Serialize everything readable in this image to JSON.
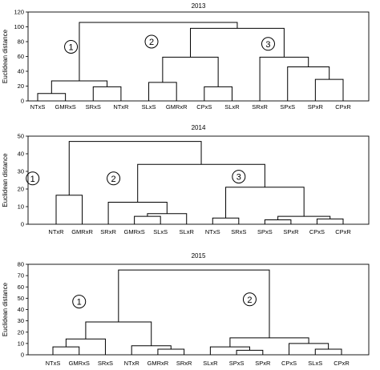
{
  "chart_data": [
    {
      "type": "dendrogram",
      "title": "2013",
      "ylabel": "Euclidean distance",
      "ylim": [
        0,
        120
      ],
      "yticks": [
        0,
        20,
        40,
        60,
        80,
        100,
        120
      ],
      "grid": false,
      "leaves": [
        "NTxS",
        "GMRxS",
        "SRxS",
        "NTxR",
        "SLxS",
        "GMRxR",
        "CPxS",
        "SLxR",
        "SRxR",
        "SPxS",
        "SPxR",
        "CPxR"
      ],
      "merges": [
        {
          "a": "NTxS",
          "b": "GMRxS",
          "height": 10
        },
        {
          "a": "SRxS",
          "b": "NTxR",
          "height": 19
        },
        {
          "a": "SLxS",
          "b": "GMRxR",
          "height": 25
        },
        {
          "a": "CPxS",
          "b": "SLxR",
          "height": 19
        },
        {
          "a": "SPxR",
          "b": "CPxR",
          "height": 29
        },
        {
          "a": "SPxS",
          "b": "m4",
          "height": 46
        },
        {
          "a": "SRxR",
          "b": "m5",
          "height": 59
        },
        {
          "a": "m0",
          "b": "m1",
          "height": 27
        },
        {
          "a": "m2",
          "b": "m3",
          "height": 59
        },
        {
          "a": "m8",
          "b": "m6",
          "height": 98
        },
        {
          "a": "m7",
          "b": "m9",
          "height": 106
        }
      ],
      "groups": [
        {
          "label": "1",
          "x_leaf": 1.2,
          "y": 73
        },
        {
          "label": "2",
          "x_leaf": 4.1,
          "y": 80
        },
        {
          "label": "3",
          "x_leaf": 8.3,
          "y": 77
        }
      ]
    },
    {
      "type": "dendrogram",
      "title": "2014",
      "ylabel": "Euclidean distance",
      "ylim": [
        0,
        50
      ],
      "yticks": [
        0,
        10,
        20,
        30,
        40,
        50
      ],
      "grid": false,
      "leaves": [
        "NTxR",
        "GMRxR",
        "SRxR",
        "GMRxS",
        "SLxS",
        "SLxR",
        "NTxS",
        "SRxS",
        "SPxS",
        "SPxR",
        "CPxS",
        "CPxR"
      ],
      "merges": [
        {
          "a": "NTxR",
          "b": "GMRxR",
          "height": 16.5
        },
        {
          "a": "GMRxS",
          "b": "SLxS",
          "height": 4.5
        },
        {
          "a": "m1",
          "b": "SLxR",
          "height": 6
        },
        {
          "a": "SRxR",
          "b": "m2",
          "height": 12.5
        },
        {
          "a": "NTxS",
          "b": "SRxS",
          "height": 3.5
        },
        {
          "a": "SPxS",
          "b": "SPxR",
          "height": 2.5
        },
        {
          "a": "CPxS",
          "b": "CPxR",
          "height": 3
        },
        {
          "a": "m5",
          "b": "m6",
          "height": 4.5
        },
        {
          "a": "m4",
          "b": "m7",
          "height": 21
        },
        {
          "a": "m3",
          "b": "m8",
          "height": 34
        },
        {
          "a": "m0",
          "b": "m9",
          "height": 47
        }
      ],
      "groups": [
        {
          "label": "1",
          "x_leaf": -0.9,
          "y": 26
        },
        {
          "label": "2",
          "x_leaf": 2.2,
          "y": 26
        },
        {
          "label": "3",
          "x_leaf": 7.0,
          "y": 27
        }
      ]
    },
    {
      "type": "dendrogram",
      "title": "2015",
      "ylabel": "Euclidean distance",
      "ylim": [
        0,
        80
      ],
      "yticks": [
        0,
        10,
        20,
        30,
        40,
        50,
        60,
        70,
        80
      ],
      "grid": false,
      "leaves": [
        "NTxS",
        "GMRxS",
        "SRxS",
        "NTxR",
        "GMRxR",
        "SRxR",
        "SLxR",
        "SPxS",
        "SPxR",
        "CPxS",
        "SLxS",
        "CPxR"
      ],
      "merges": [
        {
          "a": "NTxS",
          "b": "GMRxS",
          "height": 7
        },
        {
          "a": "m0",
          "b": "SRxS",
          "height": 14
        },
        {
          "a": "GMRxR",
          "b": "SRxR",
          "height": 5
        },
        {
          "a": "NTxR",
          "b": "m2",
          "height": 8
        },
        {
          "a": "m1",
          "b": "m3",
          "height": 29
        },
        {
          "a": "SPxS",
          "b": "SPxR",
          "height": 4
        },
        {
          "a": "SLxR",
          "b": "m5",
          "height": 7
        },
        {
          "a": "SLxS",
          "b": "CPxR",
          "height": 5
        },
        {
          "a": "CPxS",
          "b": "m7",
          "height": 10
        },
        {
          "a": "m6",
          "b": "m8",
          "height": 15
        },
        {
          "a": "m4",
          "b": "m9",
          "height": 75
        }
      ],
      "groups": [
        {
          "label": "1",
          "x_leaf": 1.0,
          "y": 47
        },
        {
          "label": "2",
          "x_leaf": 7.5,
          "y": 49
        }
      ]
    }
  ]
}
